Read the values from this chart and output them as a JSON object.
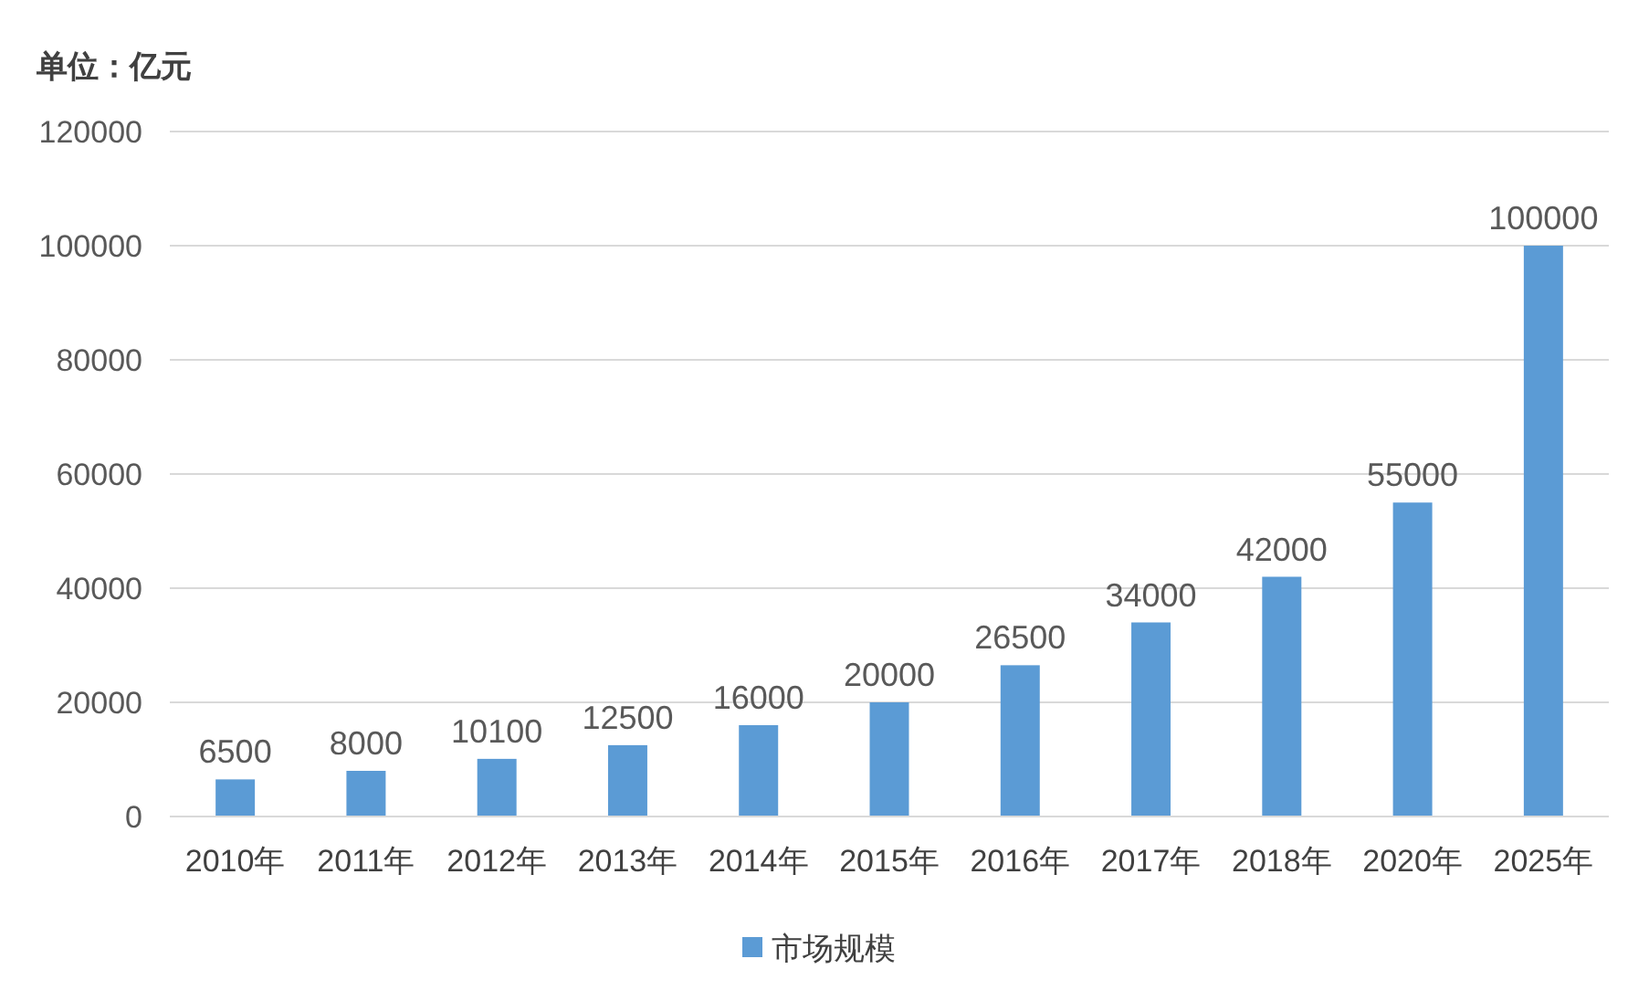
{
  "chart_data": {
    "type": "bar",
    "ylabel": "单位：亿元",
    "categories": [
      "2010年",
      "2011年",
      "2012年",
      "2013年",
      "2014年",
      "2015年",
      "2016年",
      "2017年",
      "2018年",
      "2020年",
      "2025年"
    ],
    "series": [
      {
        "name": "市场规模",
        "color": "#5b9bd5",
        "values": [
          6500,
          8000,
          10100,
          12500,
          16000,
          20000,
          26500,
          34000,
          42000,
          55000,
          100000
        ]
      }
    ],
    "ylim": [
      0,
      120000
    ],
    "yticks": [
      0,
      20000,
      40000,
      60000,
      80000,
      100000,
      120000
    ],
    "grid": "y",
    "legend": "bottom",
    "data_labels": true
  }
}
